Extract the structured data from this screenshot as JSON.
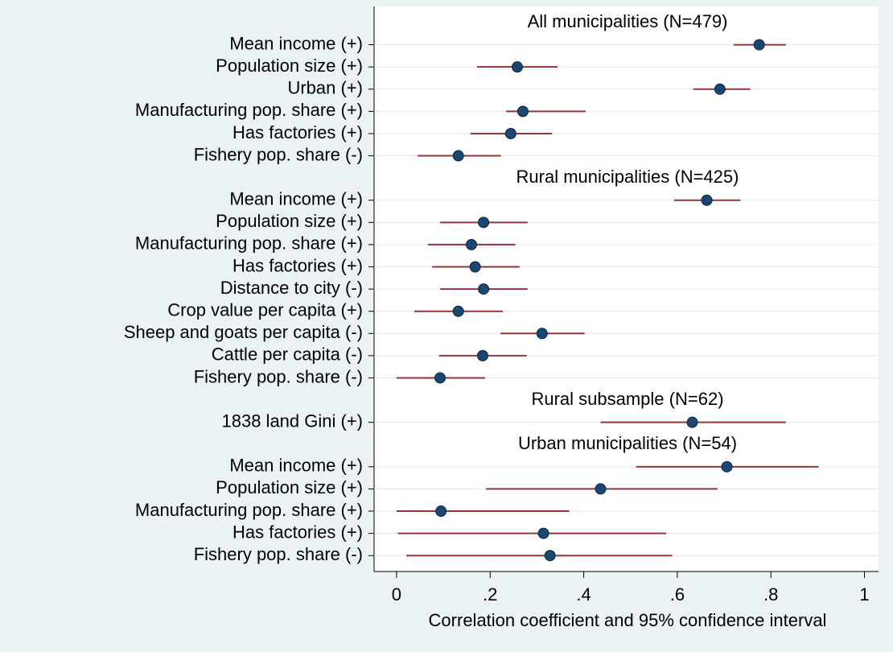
{
  "chart_data": {
    "type": "coefplot",
    "xlabel": "Correlation coefficient and 95% confidence interval",
    "xlim": [
      -0.048,
      1.03
    ],
    "xticks": [
      0,
      {
        "value": 0.2,
        "label": ".2"
      },
      {
        "value": 0.4,
        "label": ".4"
      },
      {
        "value": 0.6,
        "label": ".6"
      },
      {
        "value": 0.8,
        "label": ".8"
      },
      1
    ],
    "ygrid": true,
    "point_color": "#1a476f",
    "ci_color": "#90353b",
    "groups": [
      {
        "title": "All municipalities (N=479)",
        "categories": [
          "Mean income (+)",
          "Population size (+)",
          "Urban (+)",
          "Manufacturing pop. share (+)",
          "Has factories (+)",
          "Fishery pop. share (-)"
        ],
        "estimates": [
          0.775,
          0.258,
          0.691,
          0.27,
          0.244,
          0.132
        ],
        "lower": [
          0.72,
          0.172,
          0.634,
          0.234,
          0.158,
          0.045
        ],
        "upper": [
          0.832,
          0.344,
          0.756,
          0.404,
          0.332,
          0.223
        ]
      },
      {
        "title": "Rural municipalities (N=425)",
        "categories": [
          "Mean income (+)",
          "Population size (+)",
          "Manufacturing pop. share (+)",
          "Has factories (+)",
          "Distance to city (-)",
          "Crop value per capita (+)",
          "Sheep and goats per capita (-)",
          "Cattle per capita (-)",
          "Fishery pop. share (-)"
        ],
        "estimates": [
          0.663,
          0.186,
          0.16,
          0.168,
          0.186,
          0.132,
          0.311,
          0.184,
          0.093
        ],
        "lower": [
          0.593,
          0.093,
          0.067,
          0.076,
          0.093,
          0.038,
          0.222,
          0.091,
          0.0
        ],
        "upper": [
          0.735,
          0.28,
          0.254,
          0.263,
          0.28,
          0.227,
          0.402,
          0.278,
          0.189
        ]
      },
      {
        "title": "Rural subsample (N=62)",
        "categories": [
          "1838 land Gini (+)"
        ],
        "estimates": [
          0.632
        ],
        "lower": [
          0.436
        ],
        "upper": [
          0.832
        ]
      },
      {
        "title": "Urban municipalities (N=54)",
        "categories": [
          "Mean income (+)",
          "Population size (+)",
          "Manufacturing pop. share (+)",
          "Has factories (+)",
          "Fishery pop. share (-)"
        ],
        "estimates": [
          0.706,
          0.436,
          0.095,
          0.314,
          0.328
        ],
        "lower": [
          0.512,
          0.191,
          0.0,
          0.003,
          0.021
        ],
        "upper": [
          0.902,
          0.686,
          0.369,
          0.576,
          0.589
        ]
      }
    ]
  }
}
